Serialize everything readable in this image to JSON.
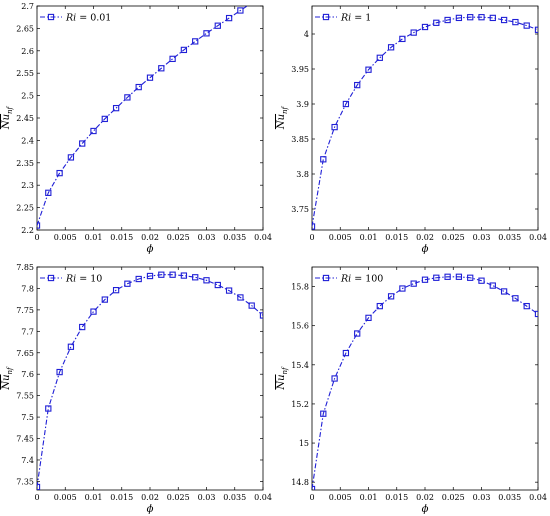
{
  "colors": {
    "series": "#1f1fd6",
    "axis": "#000000",
    "background": "#ffffff"
  },
  "chart_data": [
    {
      "type": "line",
      "legend": "Ri = 0.01",
      "legend_position": "top-left",
      "grid": false,
      "xlabel": "ϕ",
      "ylabel": "Nu_nf",
      "xlim": [
        0,
        0.04
      ],
      "ylim": [
        2.2,
        2.7
      ],
      "xticks": [
        0,
        0.005,
        0.01,
        0.015,
        0.02,
        0.025,
        0.03,
        0.035,
        0.04
      ],
      "xtick_labels": [
        "0",
        "0.005",
        "0.01",
        "0.015",
        "0.02",
        "0.025",
        "0.03",
        "0.035",
        "0.04"
      ],
      "yticks": [
        2.2,
        2.25,
        2.3,
        2.35,
        2.4,
        2.45,
        2.5,
        2.55,
        2.6,
        2.65,
        2.7
      ],
      "ytick_labels": [
        "2.2",
        "2.25",
        "2.3",
        "2.35",
        "2.4",
        "2.45",
        "2.5",
        "2.55",
        "2.6",
        "2.65",
        "2.7"
      ],
      "x": [
        0,
        0.002,
        0.004,
        0.006,
        0.008,
        0.01,
        0.012,
        0.014,
        0.016,
        0.018,
        0.02,
        0.022,
        0.024,
        0.026,
        0.028,
        0.03,
        0.032,
        0.034,
        0.036,
        0.038,
        0.04
      ],
      "y": [
        2.21,
        2.283,
        2.327,
        2.362,
        2.393,
        2.421,
        2.448,
        2.472,
        2.496,
        2.519,
        2.54,
        2.561,
        2.582,
        2.602,
        2.621,
        2.639,
        2.656,
        2.673,
        2.69,
        2.707,
        2.72
      ]
    },
    {
      "type": "line",
      "legend": "Ri = 1",
      "legend_position": "top-left",
      "grid": false,
      "xlabel": "ϕ",
      "ylabel": "Nu_nf",
      "xlim": [
        0,
        0.04
      ],
      "ylim": [
        3.72,
        4.04
      ],
      "xticks": [
        0,
        0.005,
        0.01,
        0.015,
        0.02,
        0.025,
        0.03,
        0.035,
        0.04
      ],
      "xtick_labels": [
        "0",
        "0.005",
        "0.01",
        "0.015",
        "0.02",
        "0.025",
        "0.03",
        "0.035",
        "0.04"
      ],
      "yticks": [
        3.75,
        3.8,
        3.85,
        3.9,
        3.95,
        4.0
      ],
      "ytick_labels": [
        "3.75",
        "3.8",
        "3.85",
        "3.9",
        "3.95",
        "4"
      ],
      "x": [
        0,
        0.002,
        0.004,
        0.006,
        0.008,
        0.01,
        0.012,
        0.014,
        0.016,
        0.018,
        0.02,
        0.022,
        0.024,
        0.026,
        0.028,
        0.03,
        0.032,
        0.034,
        0.036,
        0.038,
        0.04
      ],
      "y": [
        3.725,
        3.821,
        3.867,
        3.9,
        3.927,
        3.949,
        3.966,
        3.981,
        3.993,
        4.002,
        4.01,
        4.016,
        4.02,
        4.023,
        4.024,
        4.024,
        4.023,
        4.02,
        4.017,
        4.012,
        4.006
      ]
    },
    {
      "type": "line",
      "legend": "Ri = 10",
      "legend_position": "top-left",
      "grid": false,
      "xlabel": "ϕ",
      "ylabel": "Nu_nf",
      "xlim": [
        0,
        0.04
      ],
      "ylim": [
        7.33,
        7.85
      ],
      "xticks": [
        0,
        0.005,
        0.01,
        0.015,
        0.02,
        0.025,
        0.03,
        0.035,
        0.04
      ],
      "xtick_labels": [
        "0",
        "0.005",
        "0.01",
        "0.015",
        "0.02",
        "0.025",
        "0.03",
        "0.035",
        "0.04"
      ],
      "yticks": [
        7.35,
        7.4,
        7.45,
        7.5,
        7.55,
        7.6,
        7.65,
        7.7,
        7.75,
        7.8,
        7.85
      ],
      "ytick_labels": [
        "7.35",
        "7.4",
        "7.45",
        "7.5",
        "7.55",
        "7.6",
        "7.65",
        "7.7",
        "7.75",
        "7.8",
        "7.85"
      ],
      "x": [
        0,
        0.002,
        0.004,
        0.006,
        0.008,
        0.01,
        0.012,
        0.014,
        0.016,
        0.018,
        0.02,
        0.022,
        0.024,
        0.026,
        0.028,
        0.03,
        0.032,
        0.034,
        0.036,
        0.038,
        0.04
      ],
      "y": [
        7.337,
        7.52,
        7.605,
        7.664,
        7.71,
        7.746,
        7.774,
        7.796,
        7.811,
        7.822,
        7.829,
        7.832,
        7.832,
        7.83,
        7.826,
        7.819,
        7.808,
        7.795,
        7.779,
        7.76,
        7.737
      ]
    },
    {
      "type": "line",
      "legend": "Ri = 100",
      "legend_position": "top-left",
      "grid": false,
      "xlabel": "ϕ",
      "ylabel": "Nu_nf",
      "xlim": [
        0,
        0.04
      ],
      "ylim": [
        14.76,
        15.9
      ],
      "xticks": [
        0,
        0.005,
        0.01,
        0.015,
        0.02,
        0.025,
        0.03,
        0.035,
        0.04
      ],
      "xtick_labels": [
        "0",
        "0.005",
        "0.01",
        "0.015",
        "0.02",
        "0.025",
        "0.03",
        "0.035",
        "0.04"
      ],
      "yticks": [
        14.8,
        15.0,
        15.2,
        15.4,
        15.6,
        15.8
      ],
      "ytick_labels": [
        "14.8",
        "15",
        "15.2",
        "15.4",
        "15.6",
        "15.8"
      ],
      "x": [
        0,
        0.002,
        0.004,
        0.006,
        0.008,
        0.01,
        0.012,
        0.014,
        0.016,
        0.018,
        0.02,
        0.022,
        0.024,
        0.026,
        0.028,
        0.03,
        0.032,
        0.034,
        0.036,
        0.038,
        0.04
      ],
      "y": [
        14.765,
        15.15,
        15.33,
        15.46,
        15.56,
        15.64,
        15.7,
        15.75,
        15.79,
        15.815,
        15.835,
        15.845,
        15.85,
        15.85,
        15.845,
        15.83,
        15.805,
        15.775,
        15.74,
        15.7,
        15.66
      ]
    }
  ]
}
